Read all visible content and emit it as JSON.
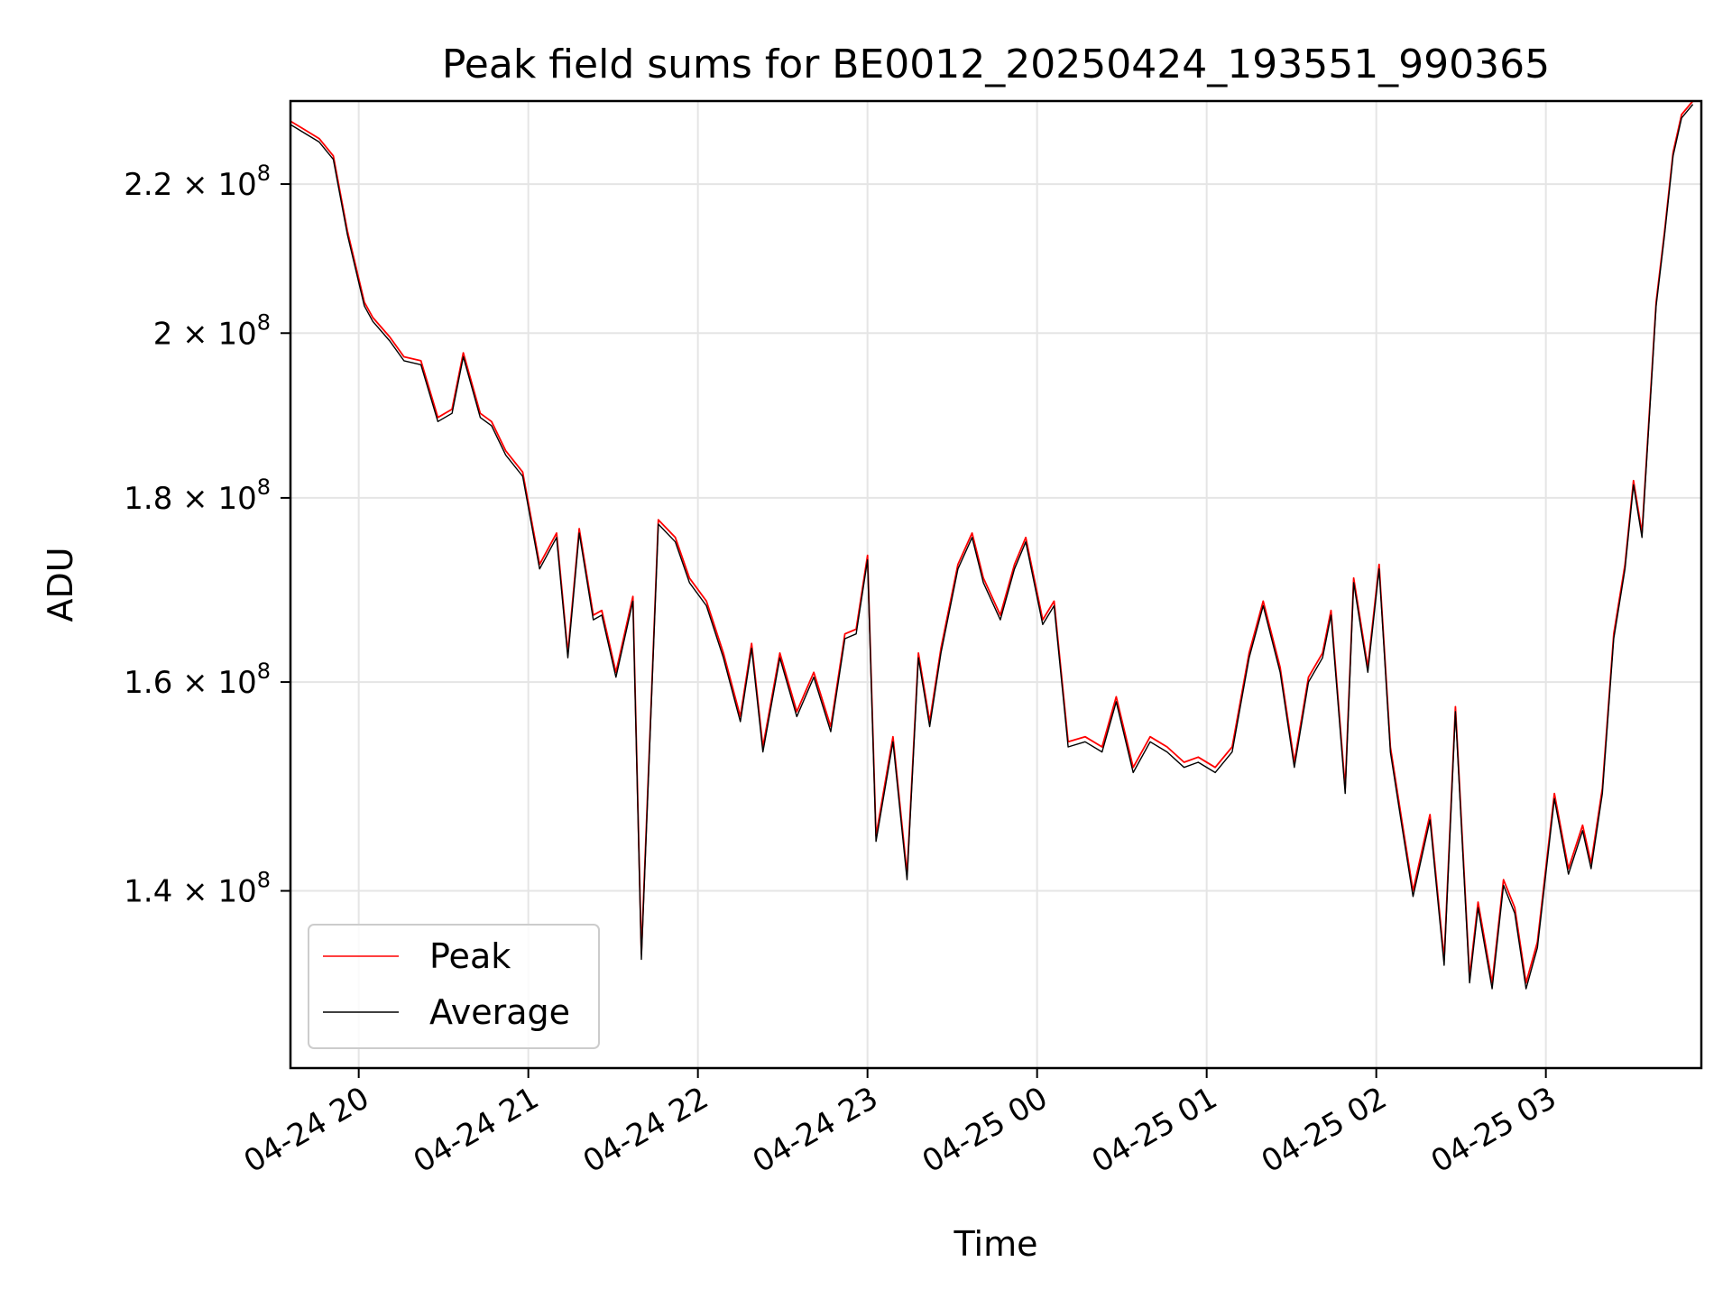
{
  "chart_data": {
    "type": "line",
    "title": "Peak field sums for BE0012_20250424_193551_990365",
    "xlabel": "Time",
    "ylabel": "ADU",
    "yscale": "log",
    "ylim": [
      125000000,
      232000000
    ],
    "xlim": [
      "2025-04-24 19:35:51",
      "2025-04-25 03:55:00"
    ],
    "grid": true,
    "legend_position": "lower-left",
    "x_ticks": [
      {
        "label": "04-24 20",
        "t": "2025-04-24 20:00"
      },
      {
        "label": "04-24 21",
        "t": "2025-04-24 21:00"
      },
      {
        "label": "04-24 22",
        "t": "2025-04-24 22:00"
      },
      {
        "label": "04-24 23",
        "t": "2025-04-24 23:00"
      },
      {
        "label": "04-25 00",
        "t": "2025-04-25 00:00"
      },
      {
        "label": "04-25 01",
        "t": "2025-04-25 01:00"
      },
      {
        "label": "04-25 02",
        "t": "2025-04-25 02:00"
      },
      {
        "label": "04-25 03",
        "t": "2025-04-25 03:00"
      }
    ],
    "y_ticks": [
      {
        "mantissa": "1.4",
        "value": 140000000
      },
      {
        "mantissa": "1.6",
        "value": 160000000
      },
      {
        "mantissa": "1.8",
        "value": 180000000
      },
      {
        "mantissa": "2",
        "value": 200000000
      },
      {
        "mantissa": "2.2",
        "value": 220000000
      }
    ],
    "y_tick_base": "10",
    "y_tick_exponent": "8",
    "series": [
      {
        "name": "Peak",
        "color": "#ff0000",
        "x": [
          "2025-04-24 19:36",
          "2025-04-24 19:40",
          "2025-04-24 19:46",
          "2025-04-24 19:51",
          "2025-04-24 19:56",
          "2025-04-24 20:02",
          "2025-04-24 20:05",
          "2025-04-24 20:11",
          "2025-04-24 20:16",
          "2025-04-24 20:22",
          "2025-04-24 20:28",
          "2025-04-24 20:33",
          "2025-04-24 20:37",
          "2025-04-24 20:43",
          "2025-04-24 20:47",
          "2025-04-24 20:52",
          "2025-04-24 20:58",
          "2025-04-24 21:04",
          "2025-04-24 21:10",
          "2025-04-24 21:14",
          "2025-04-24 21:18",
          "2025-04-24 21:23",
          "2025-04-24 21:26",
          "2025-04-24 21:31",
          "2025-04-24 21:37",
          "2025-04-24 21:40",
          "2025-04-24 21:46",
          "2025-04-24 21:52",
          "2025-04-24 21:57",
          "2025-04-24 22:03",
          "2025-04-24 22:09",
          "2025-04-24 22:15",
          "2025-04-24 22:19",
          "2025-04-24 22:23",
          "2025-04-24 22:29",
          "2025-04-24 22:35",
          "2025-04-24 22:41",
          "2025-04-24 22:47",
          "2025-04-24 22:52",
          "2025-04-24 22:56",
          "2025-04-24 23:00",
          "2025-04-24 23:03",
          "2025-04-24 23:09",
          "2025-04-24 23:14",
          "2025-04-24 23:18",
          "2025-04-24 23:22",
          "2025-04-24 23:26",
          "2025-04-24 23:32",
          "2025-04-24 23:37",
          "2025-04-24 23:41",
          "2025-04-24 23:47",
          "2025-04-24 23:52",
          "2025-04-24 23:56",
          "2025-04-25 00:02",
          "2025-04-25 00:06",
          "2025-04-25 00:11",
          "2025-04-25 00:17",
          "2025-04-25 00:23",
          "2025-04-25 00:28",
          "2025-04-25 00:34",
          "2025-04-25 00:40",
          "2025-04-25 00:46",
          "2025-04-25 00:52",
          "2025-04-25 00:57",
          "2025-04-25 01:03",
          "2025-04-25 01:09",
          "2025-04-25 01:15",
          "2025-04-25 01:20",
          "2025-04-25 01:26",
          "2025-04-25 01:31",
          "2025-04-25 01:36",
          "2025-04-25 01:41",
          "2025-04-25 01:44",
          "2025-04-25 01:49",
          "2025-04-25 01:52",
          "2025-04-25 01:57",
          "2025-04-25 02:01",
          "2025-04-25 02:05",
          "2025-04-25 02:09",
          "2025-04-25 02:13",
          "2025-04-25 02:19",
          "2025-04-25 02:24",
          "2025-04-25 02:28",
          "2025-04-25 02:33",
          "2025-04-25 02:36",
          "2025-04-25 02:41",
          "2025-04-25 02:45",
          "2025-04-25 02:49",
          "2025-04-25 02:53",
          "2025-04-25 02:57",
          "2025-04-25 03:03",
          "2025-04-25 03:08",
          "2025-04-25 03:13",
          "2025-04-25 03:16",
          "2025-04-25 03:20",
          "2025-04-25 03:24",
          "2025-04-25 03:28",
          "2025-04-25 03:31",
          "2025-04-25 03:34",
          "2025-04-25 03:39",
          "2025-04-25 03:42",
          "2025-04-25 03:45",
          "2025-04-25 03:48",
          "2025-04-25 03:52"
        ],
        "values": [
          229000000,
          228000000,
          226500000,
          224000000,
          213500000,
          204000000,
          202000000,
          199500000,
          197000000,
          196500000,
          189500000,
          190500000,
          197500000,
          190000000,
          189000000,
          185500000,
          183000000,
          172500000,
          176000000,
          163000000,
          176500000,
          167000000,
          167500000,
          161000000,
          169000000,
          134500000,
          177500000,
          175500000,
          171000000,
          168500000,
          163000000,
          156500000,
          164000000,
          153500000,
          163000000,
          157000000,
          161000000,
          155500000,
          165000000,
          165500000,
          173500000,
          145000000,
          154500000,
          141500000,
          163000000,
          156000000,
          163500000,
          172500000,
          176000000,
          171000000,
          167000000,
          172500000,
          175500000,
          166500000,
          168500000,
          154000000,
          154500000,
          153500000,
          158500000,
          151500000,
          154500000,
          153500000,
          152000000,
          152500000,
          151500000,
          153500000,
          163000000,
          168500000,
          161500000,
          152000000,
          160500000,
          163000000,
          167500000,
          149500000,
          171000000,
          161500000,
          172500000,
          153500000,
          146500000,
          140000000,
          147000000,
          134000000,
          157500000,
          132500000,
          139000000,
          132000000,
          141000000,
          138500000,
          132000000,
          135500000,
          149000000,
          142000000,
          146000000,
          142500000,
          149500000,
          165000000,
          172500000,
          182000000,
          176000000,
          204000000,
          213500000,
          224500000,
          230000000,
          232000000
        ]
      },
      {
        "name": "Average",
        "color": "#000000",
        "x": [
          "2025-04-24 19:36",
          "2025-04-24 19:40",
          "2025-04-24 19:46",
          "2025-04-24 19:51",
          "2025-04-24 19:56",
          "2025-04-24 20:02",
          "2025-04-24 20:05",
          "2025-04-24 20:11",
          "2025-04-24 20:16",
          "2025-04-24 20:22",
          "2025-04-24 20:28",
          "2025-04-24 20:33",
          "2025-04-24 20:37",
          "2025-04-24 20:43",
          "2025-04-24 20:47",
          "2025-04-24 20:52",
          "2025-04-24 20:58",
          "2025-04-24 21:04",
          "2025-04-24 21:10",
          "2025-04-24 21:14",
          "2025-04-24 21:18",
          "2025-04-24 21:23",
          "2025-04-24 21:26",
          "2025-04-24 21:31",
          "2025-04-24 21:37",
          "2025-04-24 21:40",
          "2025-04-24 21:46",
          "2025-04-24 21:52",
          "2025-04-24 21:57",
          "2025-04-24 22:03",
          "2025-04-24 22:09",
          "2025-04-24 22:15",
          "2025-04-24 22:19",
          "2025-04-24 22:23",
          "2025-04-24 22:29",
          "2025-04-24 22:35",
          "2025-04-24 22:41",
          "2025-04-24 22:47",
          "2025-04-24 22:52",
          "2025-04-24 22:56",
          "2025-04-24 23:00",
          "2025-04-24 23:03",
          "2025-04-24 23:09",
          "2025-04-24 23:14",
          "2025-04-24 23:18",
          "2025-04-24 23:22",
          "2025-04-24 23:26",
          "2025-04-24 23:32",
          "2025-04-24 23:37",
          "2025-04-24 23:41",
          "2025-04-24 23:47",
          "2025-04-24 23:52",
          "2025-04-24 23:56",
          "2025-04-25 00:02",
          "2025-04-25 00:06",
          "2025-04-25 00:11",
          "2025-04-25 00:17",
          "2025-04-25 00:23",
          "2025-04-25 00:28",
          "2025-04-25 00:34",
          "2025-04-25 00:40",
          "2025-04-25 00:46",
          "2025-04-25 00:52",
          "2025-04-25 00:57",
          "2025-04-25 01:03",
          "2025-04-25 01:09",
          "2025-04-25 01:15",
          "2025-04-25 01:20",
          "2025-04-25 01:26",
          "2025-04-25 01:31",
          "2025-04-25 01:36",
          "2025-04-25 01:41",
          "2025-04-25 01:44",
          "2025-04-25 01:49",
          "2025-04-25 01:52",
          "2025-04-25 01:57",
          "2025-04-25 02:01",
          "2025-04-25 02:05",
          "2025-04-25 02:09",
          "2025-04-25 02:13",
          "2025-04-25 02:19",
          "2025-04-25 02:24",
          "2025-04-25 02:28",
          "2025-04-25 02:33",
          "2025-04-25 02:36",
          "2025-04-25 02:41",
          "2025-04-25 02:45",
          "2025-04-25 02:49",
          "2025-04-25 02:53",
          "2025-04-25 02:57",
          "2025-04-25 03:03",
          "2025-04-25 03:08",
          "2025-04-25 03:13",
          "2025-04-25 03:16",
          "2025-04-25 03:20",
          "2025-04-25 03:24",
          "2025-04-25 03:28",
          "2025-04-25 03:31",
          "2025-04-25 03:34",
          "2025-04-25 03:39",
          "2025-04-25 03:42",
          "2025-04-25 03:45",
          "2025-04-25 03:48",
          "2025-04-25 03:52"
        ],
        "values": [
          228500000,
          227500000,
          226000000,
          223500000,
          213000000,
          203500000,
          201500000,
          199000000,
          196500000,
          196000000,
          189000000,
          190000000,
          197000000,
          189500000,
          188500000,
          185000000,
          182500000,
          172000000,
          175500000,
          162500000,
          176000000,
          166500000,
          167000000,
          160500000,
          168500000,
          134000000,
          177000000,
          175000000,
          170500000,
          168000000,
          162500000,
          156000000,
          163500000,
          153000000,
          162500000,
          156500000,
          160500000,
          155000000,
          164500000,
          165000000,
          173000000,
          144500000,
          154000000,
          141000000,
          162500000,
          155500000,
          163000000,
          172000000,
          175500000,
          170500000,
          166500000,
          172000000,
          175000000,
          166000000,
          168000000,
          153500000,
          154000000,
          153000000,
          158000000,
          151000000,
          154000000,
          153000000,
          151500000,
          152000000,
          151000000,
          153000000,
          162500000,
          168000000,
          161000000,
          151500000,
          160000000,
          162500000,
          167000000,
          149000000,
          170500000,
          161000000,
          172000000,
          153000000,
          146000000,
          139500000,
          146500000,
          133500000,
          157000000,
          132000000,
          138500000,
          131500000,
          140500000,
          138000000,
          131500000,
          135000000,
          148500000,
          141500000,
          145500000,
          142000000,
          149000000,
          164500000,
          172000000,
          181500000,
          175500000,
          203500000,
          213000000,
          224000000,
          229500000,
          231500000
        ]
      }
    ]
  }
}
